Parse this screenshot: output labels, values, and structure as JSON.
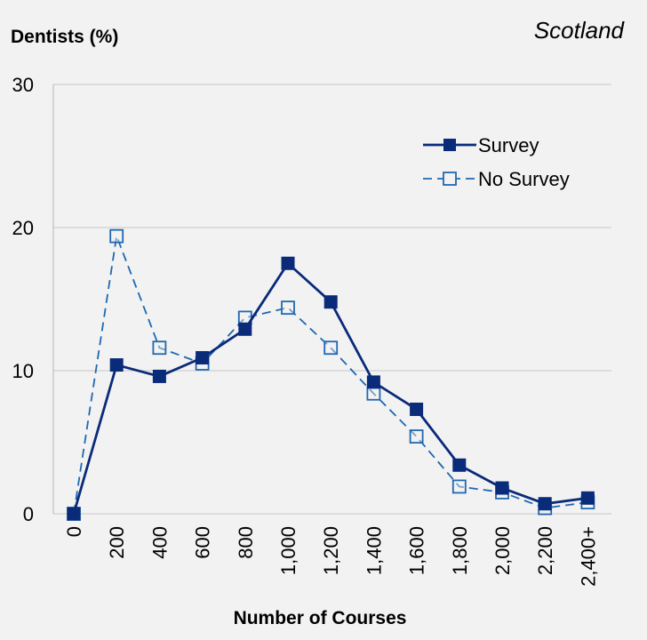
{
  "chart_data": {
    "type": "line",
    "ylabel": "Dentists (%)",
    "xlabel": "Number of Courses",
    "region_label": "Scotland",
    "categories": [
      "0",
      "200",
      "400",
      "600",
      "800",
      "1,000",
      "1,200",
      "1,400",
      "1,600",
      "1,800",
      "2,000",
      "2,200",
      "2,400+"
    ],
    "ylim": [
      0,
      30
    ],
    "yticks": [
      0,
      10,
      20,
      30
    ],
    "grid": true,
    "legend_position": "top-right",
    "series": [
      {
        "name": "Survey",
        "style": "solid",
        "marker": "filled-square",
        "color": "#0a2a7a",
        "values": [
          0,
          10.4,
          9.6,
          10.9,
          12.9,
          17.5,
          14.8,
          9.2,
          7.3,
          3.4,
          1.8,
          0.7,
          1.1
        ]
      },
      {
        "name": "No Survey",
        "style": "dashed",
        "marker": "open-square",
        "color": "#1f68b0",
        "values": [
          0,
          19.4,
          11.6,
          10.5,
          13.7,
          14.4,
          11.6,
          8.4,
          5.4,
          1.9,
          1.5,
          0.4,
          0.8
        ]
      }
    ]
  }
}
